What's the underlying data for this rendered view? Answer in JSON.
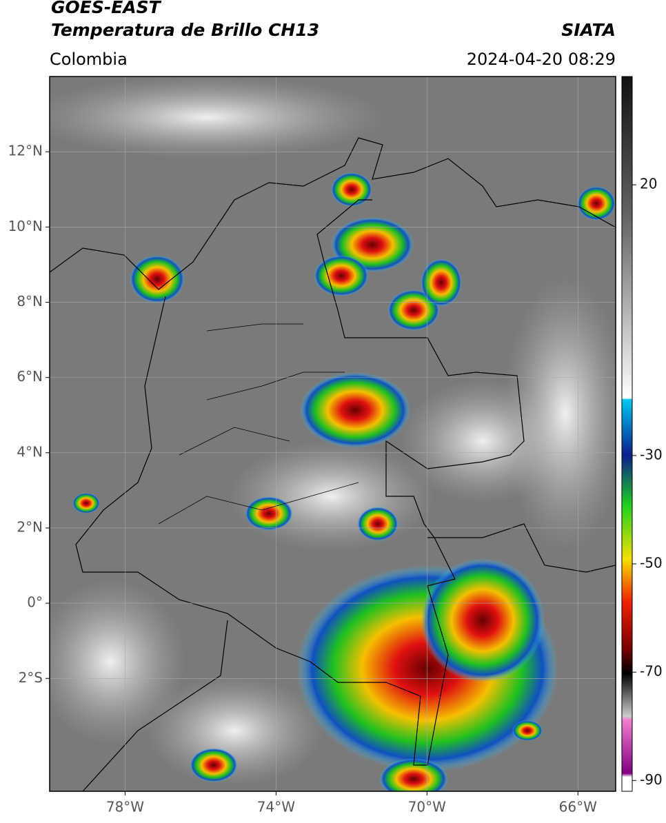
{
  "header": {
    "title": "GOES-EAST",
    "subtitle": "Temperatura de Brillo CH13",
    "source": "SIATA",
    "region": "Colombia",
    "datetime": "2024-04-20 08:29"
  },
  "map": {
    "xlim": [
      -80,
      -65
    ],
    "ylim": [
      -5,
      14
    ],
    "xticks": [
      {
        "value": -78,
        "label": "78°W"
      },
      {
        "value": -74,
        "label": "74°W"
      },
      {
        "value": -70,
        "label": "70°W"
      },
      {
        "value": -66,
        "label": "66°W"
      }
    ],
    "yticks": [
      {
        "value": 12,
        "label": "12°N"
      },
      {
        "value": 10,
        "label": "10°N"
      },
      {
        "value": 8,
        "label": "8°N"
      },
      {
        "value": 6,
        "label": "6°N"
      },
      {
        "value": 4,
        "label": "4°N"
      },
      {
        "value": 2,
        "label": "2°N"
      },
      {
        "value": 0,
        "label": "0°"
      },
      {
        "value": -2,
        "label": "2°S"
      }
    ]
  },
  "colorbar": {
    "lim": [
      -92,
      40
    ],
    "ticks": [
      20,
      -30,
      -50,
      -70,
      -90
    ]
  }
}
